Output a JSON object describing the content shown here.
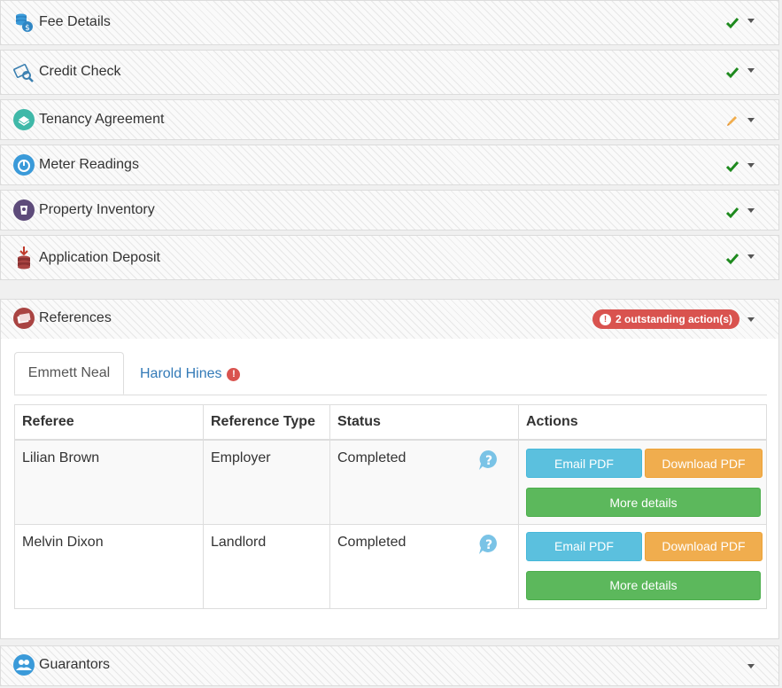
{
  "panels": [
    {
      "title": "Fee Details",
      "status": "complete"
    },
    {
      "title": "Credit Check",
      "status": "complete"
    },
    {
      "title": "Tenancy Agreement",
      "status": "editing"
    },
    {
      "title": "Meter Readings",
      "status": "complete"
    },
    {
      "title": "Property Inventory",
      "status": "complete"
    },
    {
      "title": "Application Deposit",
      "status": "complete"
    }
  ],
  "references": {
    "title": "References",
    "badge": "2 outstanding action(s)",
    "tabs": [
      {
        "label": "Emmett Neal",
        "active": true
      },
      {
        "label": "Harold Hines",
        "active": false,
        "warning": "!"
      }
    ],
    "table": {
      "headers": [
        "Referee",
        "Reference Type",
        "Status",
        "Actions"
      ],
      "rows": [
        {
          "referee": "Lilian Brown",
          "type": "Employer",
          "status": "Completed"
        },
        {
          "referee": "Melvin Dixon",
          "type": "Landlord",
          "status": "Completed"
        }
      ],
      "buttons": {
        "email": "Email PDF",
        "download": "Download PDF",
        "more": "More details"
      }
    }
  },
  "guarantors": {
    "title": "Guarantors"
  },
  "colors": {
    "check": "#1e8a1e",
    "pencil": "#f0ad4e",
    "badge": "#d9534f",
    "link": "#337ab7"
  }
}
